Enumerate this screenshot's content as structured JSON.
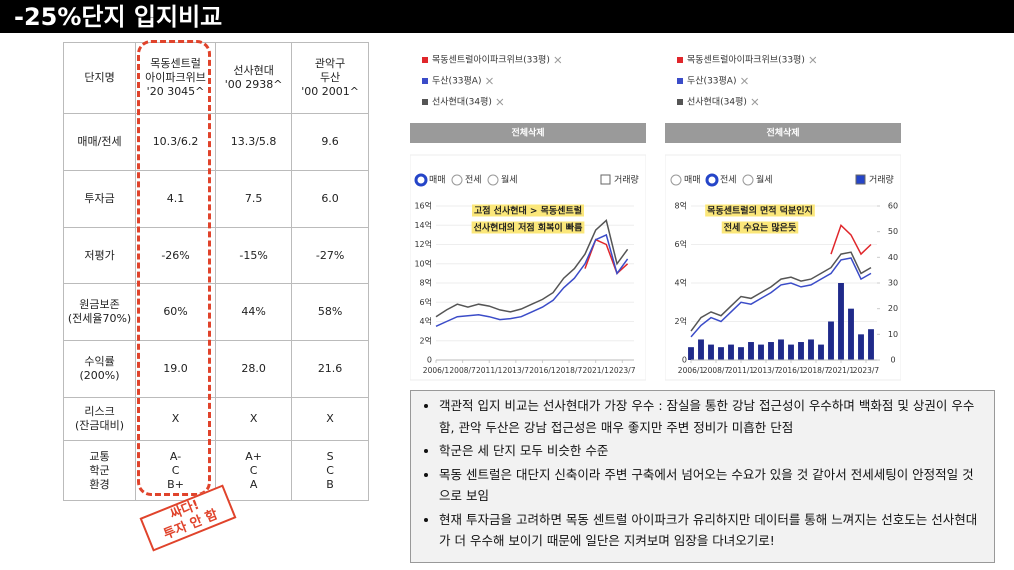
{
  "header": {
    "title": "-25%단지 입지비교"
  },
  "table": {
    "rows": [
      [
        "단지명",
        "목동센트럴\n아이파크위브\n'20 3045^",
        "선사현대\n'00 2938^",
        "관악구\n두산\n'00 2001^"
      ],
      [
        "매매/전세",
        "10.3/6.2",
        "13.3/5.8",
        "9.6"
      ],
      [
        "투자금",
        "4.1",
        "7.5",
        "6.0"
      ],
      [
        "저평가",
        "-26%",
        "-15%",
        "-27%"
      ],
      [
        "원금보존\n(전세율70%)",
        "60%",
        "44%",
        "58%"
      ],
      [
        "수익률\n(200%)",
        "19.0",
        "28.0",
        "21.6"
      ],
      [
        "리스크\n(잔금대비)",
        "X",
        "X",
        "X"
      ],
      [
        "교통\n학군\n환경",
        "A-\nC\nB+",
        "A+\nC\nA",
        "S\nC\nB"
      ]
    ]
  },
  "stamp": [
    "싸다!",
    "투자 안 함"
  ],
  "panels": [
    {
      "button": "전체삭제",
      "options": [
        "매매",
        "전세",
        "월세"
      ],
      "selected": 0,
      "volume_label": "거래량",
      "volume_checked": false
    },
    {
      "button": "전체삭제",
      "options": [
        "매매",
        "전세",
        "월세"
      ],
      "selected": 1,
      "volume_label": "거래량",
      "volume_checked": true
    }
  ],
  "chart_data": [
    {
      "type": "line",
      "annotations": [
        "고점 선사현대 > 목동센트럴",
        "선사현대의 저점 회복이 빠름"
      ],
      "x": [
        2006,
        2007,
        2008,
        2009,
        2010,
        2011,
        2012,
        2013,
        2014,
        2015,
        2016,
        2017,
        2018,
        2019,
        2020,
        2021,
        2022,
        2023,
        2024
      ],
      "series": [
        {
          "name": "목동센트럴아이파크위브(33평)",
          "color": "#e0262b",
          "values": [
            null,
            null,
            null,
            null,
            null,
            null,
            null,
            null,
            null,
            null,
            null,
            null,
            null,
            null,
            9.5,
            12.5,
            12.0,
            9.0,
            10.0
          ]
        },
        {
          "name": "두산(33평A)",
          "color": "#3b4cc8",
          "values": [
            3.5,
            4.0,
            4.5,
            4.6,
            4.7,
            4.5,
            4.2,
            4.3,
            4.5,
            5.0,
            5.5,
            6.2,
            7.5,
            8.5,
            10.0,
            12.5,
            13.0,
            9.0,
            10.5
          ]
        },
        {
          "name": "선사현대(34평)",
          "color": "#555555",
          "values": [
            4.5,
            5.2,
            5.8,
            5.5,
            5.8,
            5.6,
            5.2,
            5.0,
            5.3,
            5.8,
            6.3,
            7.0,
            8.5,
            9.5,
            11.0,
            13.5,
            14.5,
            10.0,
            11.5
          ]
        }
      ],
      "xlim": [
        2006,
        2024.6
      ],
      "xticks": [
        {
          "value": 2006.0,
          "label": "2006/1"
        },
        {
          "value": 2008.5,
          "label": "2008/7"
        },
        {
          "value": 2011.0,
          "label": "2011/1"
        },
        {
          "value": 2013.5,
          "label": "2013/7"
        },
        {
          "value": 2016.0,
          "label": "2016/1"
        },
        {
          "value": 2018.5,
          "label": "2018/7"
        },
        {
          "value": 2021.0,
          "label": "2021/1"
        },
        {
          "value": 2023.5,
          "label": "2023/7"
        }
      ],
      "ylim": [
        0,
        16
      ],
      "yticks": [
        0,
        {
          "value": 2,
          "label": "2억"
        },
        {
          "value": 4,
          "label": "4억"
        },
        {
          "value": 6,
          "label": "6억"
        },
        {
          "value": 8,
          "label": "8억"
        },
        {
          "value": 10,
          "label": "10억"
        },
        {
          "value": 12,
          "label": "12억"
        },
        {
          "value": 14,
          "label": "14억"
        },
        {
          "value": 16,
          "label": "16억"
        }
      ],
      "grid": true
    },
    {
      "type": "line",
      "annotations": [
        "목동센트럴의 면적 덕분인지",
        "전세 수요는 많은듯"
      ],
      "x": [
        2006,
        2007,
        2008,
        2009,
        2010,
        2011,
        2012,
        2013,
        2014,
        2015,
        2016,
        2017,
        2018,
        2019,
        2020,
        2021,
        2022,
        2023,
        2024
      ],
      "series": [
        {
          "name": "목동센트럴아이파크위브(33평)",
          "color": "#e0262b",
          "values": [
            null,
            null,
            null,
            null,
            null,
            null,
            null,
            null,
            null,
            null,
            null,
            null,
            null,
            null,
            5.5,
            7.0,
            6.5,
            5.5,
            6.0
          ]
        },
        {
          "name": "두산(33평A)",
          "color": "#3b4cc8",
          "values": [
            1.2,
            1.8,
            2.2,
            2.0,
            2.5,
            3.0,
            2.9,
            3.2,
            3.5,
            3.9,
            4.0,
            3.8,
            3.9,
            4.2,
            4.5,
            5.2,
            5.3,
            4.2,
            4.5
          ]
        },
        {
          "name": "선사현대(34평)",
          "color": "#555555",
          "values": [
            1.5,
            2.2,
            2.5,
            2.3,
            2.8,
            3.3,
            3.2,
            3.5,
            3.8,
            4.2,
            4.3,
            4.1,
            4.2,
            4.5,
            4.8,
            5.5,
            5.6,
            4.5,
            4.8
          ]
        },
        {
          "name": "거래량",
          "color": "#1f2a8a",
          "axis": "y2",
          "values": [
            5,
            8,
            6,
            5,
            6,
            5,
            7,
            6,
            7,
            8,
            6,
            7,
            8,
            6,
            15,
            30,
            20,
            10,
            12
          ]
        }
      ],
      "xlim": [
        2006,
        2024.6
      ],
      "xticks": [
        {
          "value": 2006.0,
          "label": "2006/1"
        },
        {
          "value": 2008.5,
          "label": "2008/7"
        },
        {
          "value": 2011.0,
          "label": "2011/1"
        },
        {
          "value": 2013.5,
          "label": "2013/7"
        },
        {
          "value": 2016.0,
          "label": "2016/1"
        },
        {
          "value": 2018.5,
          "label": "2018/7"
        },
        {
          "value": 2021.0,
          "label": "2021/1"
        },
        {
          "value": 2023.5,
          "label": "2023/7"
        }
      ],
      "ylim": [
        0,
        8
      ],
      "yticks": [
        0,
        {
          "value": 2,
          "label": "2억"
        },
        {
          "value": 4,
          "label": "4억"
        },
        {
          "value": 6,
          "label": "6억"
        },
        {
          "value": 8,
          "label": "8억"
        }
      ],
      "y2lim": [
        0,
        60
      ],
      "y2ticks": [
        0,
        10,
        20,
        30,
        40,
        50,
        60
      ],
      "grid": true
    }
  ],
  "notes": [
    "객관적 입지 비교는 선사현대가 가장 우수 : 잠실을 통한 강남 접근성이 우수하며 백화점 및 상권이 우수함, 관악 두산은 강남 접근성은 매우 좋지만 주변 정비가 미흡한 단점",
    "학군은 세 단지 모두 비슷한 수준",
    "목동 센트럴은 대단지 신축이라 주변 구축에서 넘어오는 수요가 있을 것 같아서 전세세팅이 안정적일 것으로 보임",
    "현재 투자금을 고려하면 목동 센트럴 아이파크가 유리하지만 데이터를 통해 느껴지는 선호도는 선사현대가 더 우수해 보이기 때문에 일단은 지켜보며 임장을 다녀오기로!"
  ]
}
